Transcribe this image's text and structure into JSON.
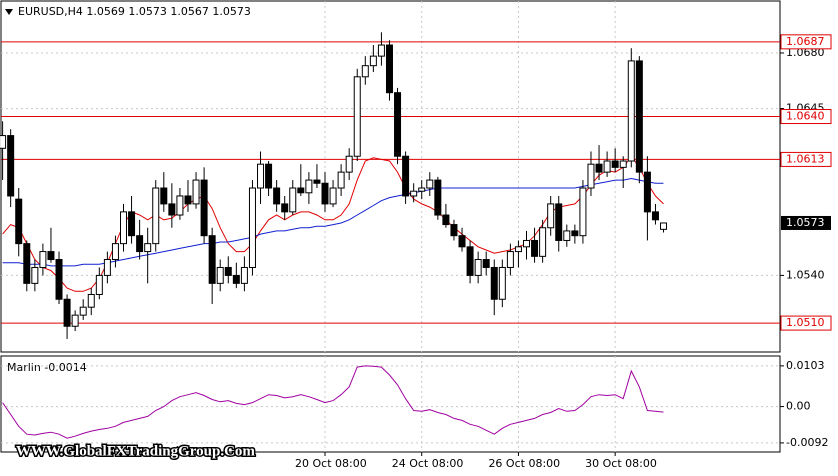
{
  "chart_data": {
    "type": "candlestick",
    "title": "EURUSD,H4  1.0569 1.0573 1.0567 1.0573",
    "watermark": "WWW.GlobalFXTradingGroup.Com",
    "categories": [
      null,
      null,
      null,
      null,
      null,
      null,
      null,
      null,
      null,
      null,
      null,
      null,
      null,
      null,
      null,
      null,
      null,
      null,
      null,
      null,
      null,
      null,
      null,
      null,
      null,
      null,
      null,
      null,
      null,
      null,
      null,
      null,
      null,
      null,
      null,
      null,
      null,
      null,
      null,
      null,
      "20 Oct 08:00",
      null,
      null,
      null,
      null,
      null,
      null,
      null,
      null,
      null,
      null,
      null,
      "24 Oct 08:00",
      null,
      null,
      null,
      null,
      null,
      null,
      null,
      null,
      null,
      null,
      null,
      "26 Oct 08:00",
      null,
      null,
      null,
      null,
      null,
      null,
      null,
      null,
      null,
      null,
      null,
      "30 Oct 08:00",
      null,
      null,
      null,
      null,
      null,
      null
    ],
    "open": [
      1.062,
      1.0628,
      1.0588,
      1.056,
      1.0535,
      1.0545,
      1.0555,
      1.055,
      1.0525,
      1.0508,
      1.0515,
      1.052,
      1.0528,
      1.054,
      1.055,
      1.056,
      1.058,
      1.0565,
      1.0555,
      1.056,
      1.0595,
      1.0585,
      1.0578,
      1.059,
      1.0585,
      1.06,
      1.0565,
      1.0535,
      1.0545,
      1.054,
      1.0535,
      1.0545,
      1.0595,
      1.061,
      1.0595,
      1.0585,
      1.058,
      1.0595,
      1.0592,
      1.06,
      1.0598,
      1.0585,
      1.0595,
      1.0605,
      1.0615,
      1.0665,
      1.0672,
      1.0678,
      1.0685,
      1.0655,
      1.0615,
      1.059,
      1.0593,
      1.0595,
      1.06,
      1.0578,
      1.0572,
      1.0565,
      1.0558,
      1.054,
      1.055,
      1.0545,
      1.0525,
      1.0545,
      1.0555,
      1.0558,
      1.0562,
      1.0552,
      1.057,
      1.0585,
      1.0562,
      1.0568,
      1.0565,
      1.0595,
      1.061,
      1.0605,
      1.0612,
      1.0608,
      1.0612,
      1.0675,
      1.0605,
      1.058,
      1.0569
    ],
    "high": [
      1.0637,
      1.0632,
      1.0595,
      1.0562,
      1.055,
      1.056,
      1.057,
      1.0555,
      1.0528,
      1.0518,
      1.0525,
      1.0532,
      1.0545,
      1.0555,
      1.0565,
      1.0585,
      1.059,
      1.0575,
      1.057,
      1.06,
      1.0605,
      1.0598,
      1.0595,
      1.06,
      1.0605,
      1.0608,
      1.057,
      1.055,
      1.0552,
      1.0548,
      1.0552,
      1.06,
      1.0618,
      1.0612,
      1.06,
      1.059,
      1.06,
      1.061,
      1.0605,
      1.061,
      1.0605,
      1.06,
      1.061,
      1.062,
      1.067,
      1.0678,
      1.0685,
      1.0693,
      1.0688,
      1.0658,
      1.0618,
      1.0598,
      1.06,
      1.0605,
      1.0602,
      1.0585,
      1.0575,
      1.057,
      1.0562,
      1.0555,
      1.0555,
      1.055,
      1.055,
      1.056,
      1.0562,
      1.0568,
      1.057,
      1.0575,
      1.059,
      1.059,
      1.0572,
      1.0572,
      1.06,
      1.0618,
      1.0622,
      1.0618,
      1.062,
      1.0615,
      1.0683,
      1.0678,
      1.0615,
      1.0585,
      1.0573
    ],
    "low": [
      1.06,
      1.0583,
      1.0552,
      1.053,
      1.053,
      1.054,
      1.0548,
      1.0522,
      1.05,
      1.0505,
      1.0512,
      1.0515,
      1.0525,
      1.0535,
      1.0545,
      1.0555,
      1.056,
      1.055,
      1.0535,
      1.0555,
      1.058,
      1.057,
      1.0575,
      1.058,
      1.0582,
      1.056,
      1.0522,
      1.053,
      1.0535,
      1.0532,
      1.053,
      1.054,
      1.0585,
      1.059,
      1.058,
      1.0575,
      1.0578,
      1.059,
      1.0585,
      1.0595,
      1.058,
      1.0583,
      1.059,
      1.06,
      1.0612,
      1.066,
      1.0668,
      1.0672,
      1.065,
      1.061,
      1.0585,
      1.0586,
      1.0588,
      1.059,
      1.0575,
      1.057,
      1.0562,
      1.0555,
      1.0535,
      1.0535,
      1.054,
      1.0515,
      1.052,
      1.054,
      1.0545,
      1.055,
      1.0548,
      1.0548,
      1.0565,
      1.0555,
      1.0558,
      1.056,
      1.056,
      1.059,
      1.06,
      1.0602,
      1.0605,
      1.0595,
      1.0608,
      1.0598,
      1.0562,
      1.0572,
      1.0567
    ],
    "close": [
      1.0628,
      1.059,
      1.056,
      1.0535,
      1.0545,
      1.0555,
      1.055,
      1.0525,
      1.0508,
      1.0515,
      1.052,
      1.0528,
      1.054,
      1.055,
      1.056,
      1.058,
      1.0565,
      1.0555,
      1.056,
      1.0595,
      1.0585,
      1.0578,
      1.059,
      1.0585,
      1.06,
      1.0565,
      1.0535,
      1.0545,
      1.054,
      1.0535,
      1.0545,
      1.0595,
      1.061,
      1.0595,
      1.0585,
      1.058,
      1.0595,
      1.0592,
      1.06,
      1.0598,
      1.0585,
      1.0595,
      1.0605,
      1.0615,
      1.0665,
      1.0672,
      1.0678,
      1.0685,
      1.0655,
      1.0615,
      1.059,
      1.0593,
      1.0595,
      1.06,
      1.0578,
      1.0572,
      1.0565,
      1.0558,
      1.054,
      1.055,
      1.0545,
      1.0525,
      1.0545,
      1.0555,
      1.0558,
      1.0562,
      1.0552,
      1.057,
      1.0585,
      1.0562,
      1.0568,
      1.0565,
      1.0595,
      1.061,
      1.0605,
      1.0612,
      1.0608,
      1.0612,
      1.0675,
      1.0605,
      1.058,
      1.0575,
      1.0573
    ],
    "up_color": "#ffffff",
    "down_color": "#000000",
    "moving_averages": [
      {
        "color": "#e00000",
        "values": [
          1.0566,
          1.0572,
          1.057,
          1.056,
          1.055,
          1.0545,
          1.0543,
          1.0538,
          1.0532,
          1.053,
          1.053,
          1.0532,
          1.0538,
          1.0548,
          1.056,
          1.0572,
          1.058,
          1.0578,
          1.0575,
          1.0578,
          1.0575,
          1.0576,
          1.058,
          1.0585,
          1.0588,
          1.059,
          1.0582,
          1.057,
          1.056,
          1.0555,
          1.0555,
          1.056,
          1.0568,
          1.0575,
          1.0578,
          1.0575,
          1.0578,
          1.058,
          1.058,
          1.0578,
          1.0575,
          1.0575,
          1.0578,
          1.0585,
          1.06,
          1.0612,
          1.0614,
          1.0613,
          1.0612,
          1.0605,
          1.0595,
          1.0588,
          1.0585,
          1.0583,
          1.058,
          1.0575,
          1.057,
          1.0566,
          1.0562,
          1.0558,
          1.0556,
          1.0554,
          1.0555,
          1.0556,
          1.0558,
          1.056,
          1.0565,
          1.0572,
          1.058,
          1.0583,
          1.0584,
          1.0585,
          1.059,
          1.0597,
          1.0603,
          1.0606,
          1.0605,
          1.0608,
          1.0615,
          1.0608,
          1.0598,
          1.059,
          1.0585
        ]
      },
      {
        "color": "#1020d0",
        "values": [
          1.0548,
          1.0548,
          1.0548,
          1.0547,
          1.0547,
          1.0547,
          1.0546,
          1.0546,
          1.0546,
          1.0546,
          1.0547,
          1.0547,
          1.0547,
          1.0548,
          1.0549,
          1.055,
          1.0551,
          1.0552,
          1.0553,
          1.0554,
          1.0555,
          1.0556,
          1.0557,
          1.0558,
          1.0559,
          1.056,
          1.056,
          1.0561,
          1.0561,
          1.0562,
          1.0563,
          1.0564,
          1.0566,
          1.0567,
          1.0568,
          1.0568,
          1.0569,
          1.057,
          1.057,
          1.0571,
          1.0571,
          1.0572,
          1.0573,
          1.0575,
          1.0578,
          1.0581,
          1.0584,
          1.0587,
          1.0589,
          1.059,
          1.0591,
          1.0592,
          1.0593,
          1.0594,
          1.0595,
          1.0595,
          1.0595,
          1.0595,
          1.0595,
          1.0595,
          1.0595,
          1.0595,
          1.0595,
          1.0595,
          1.0595,
          1.0595,
          1.0595,
          1.0595,
          1.0595,
          1.0595,
          1.0595,
          1.0595,
          1.0596,
          1.0597,
          1.0598,
          1.0599,
          1.06,
          1.06,
          1.0601,
          1.06,
          1.0599,
          1.0598,
          1.0598
        ]
      }
    ],
    "levels": [
      1.0687,
      {
        "value": 1.064,
        "label": "1.0640"
      },
      1.0613,
      {
        "value": 1.051,
        "label": "1.0510"
      }
    ],
    "level_color": "#e00000",
    "current_price": 1.0573,
    "ylim": [
      1.04918,
      1.07127
    ],
    "yticks": [
      {
        "value": 1.068,
        "label": "1.0680"
      },
      1.0645,
      {
        "value": 1.054,
        "label": "1.0540"
      }
    ],
    "grid": true,
    "indicator": {
      "type": "line",
      "title": "Marlin -0.0014",
      "color": "#a000a0",
      "values": [
        0.001,
        -0.002,
        -0.005,
        -0.007,
        -0.0072,
        -0.0068,
        -0.0065,
        -0.007,
        -0.008,
        -0.0075,
        -0.0068,
        -0.0062,
        -0.0058,
        -0.0055,
        -0.005,
        -0.004,
        -0.0035,
        -0.003,
        -0.0025,
        -0.001,
        0.0,
        0.0015,
        0.0025,
        0.003,
        0.0035,
        0.0028,
        0.0018,
        0.0012,
        0.0015,
        0.0008,
        0.0005,
        0.001,
        0.002,
        0.003,
        0.0028,
        0.0022,
        0.0025,
        0.003,
        0.0025,
        0.0018,
        0.001,
        0.0015,
        0.003,
        0.005,
        0.01,
        0.0103,
        0.0102,
        0.01,
        0.008,
        0.0055,
        0.002,
        -0.001,
        -0.0012,
        -0.0008,
        -0.0015,
        -0.002,
        -0.003,
        -0.0035,
        -0.0045,
        -0.005,
        -0.006,
        -0.007,
        -0.0055,
        -0.0045,
        -0.004,
        -0.0035,
        -0.003,
        -0.002,
        -0.0015,
        -0.0005,
        -0.0012,
        -0.001,
        0.0005,
        0.0025,
        0.003,
        0.0028,
        0.003,
        0.002,
        0.009,
        0.005,
        -0.001,
        -0.0012,
        -0.0014
      ],
      "ylim": [
        -0.0115,
        0.0128
      ],
      "yticks": [
        0.0103,
        {
          "value": 0,
          "label": "0.00"
        },
        -0.0092
      ]
    }
  }
}
